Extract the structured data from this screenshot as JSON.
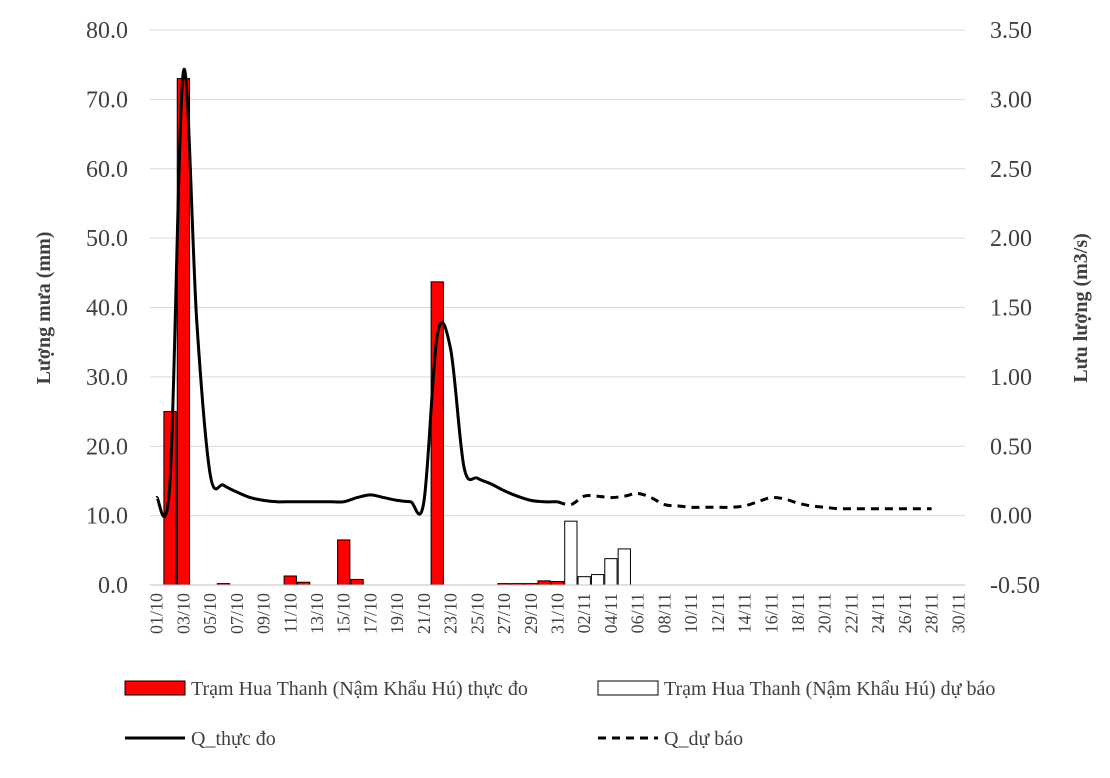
{
  "chart_data": {
    "type": "bar",
    "y_left": {
      "label": "Lượng mưa (mm)",
      "range": [
        0,
        80
      ],
      "ticks": [
        "0.0",
        "10.0",
        "20.0",
        "30.0",
        "40.0",
        "50.0",
        "60.0",
        "70.0",
        "80.0"
      ]
    },
    "y_right": {
      "label": "Lưu lượng (m3/s)",
      "range": [
        -0.5,
        3.5
      ],
      "ticks": [
        "-0.50",
        "0.00",
        "0.50",
        "1.00",
        "1.50",
        "2.00",
        "2.50",
        "3.00",
        "3.50"
      ]
    },
    "x_range": [
      "01/10",
      "30/11"
    ],
    "x_tick_labels": [
      "01/10",
      "03/10",
      "05/10",
      "07/10",
      "09/10",
      "11/10",
      "13/10",
      "15/10",
      "17/10",
      "19/10",
      "21/10",
      "23/10",
      "25/10",
      "27/10",
      "29/10",
      "31/10",
      "02/11",
      "04/11",
      "06/11",
      "08/11",
      "10/11",
      "12/11",
      "14/11",
      "16/11",
      "18/11",
      "20/11",
      "22/11",
      "24/11",
      "26/11",
      "28/11",
      "30/11"
    ],
    "grid": "horizontal",
    "legend_position": "bottom",
    "series": [
      {
        "name": "Trạm Hua Thanh (Nậm Khẩu Hú) thực đo",
        "kind": "bar",
        "axis": "left",
        "color": "#ff0000",
        "points": [
          [
            "02/10",
            25.0
          ],
          [
            "03/10",
            73.0
          ],
          [
            "06/10",
            0.2
          ],
          [
            "11/10",
            1.3
          ],
          [
            "12/10",
            0.4
          ],
          [
            "15/10",
            6.5
          ],
          [
            "16/10",
            0.8
          ],
          [
            "22/10",
            43.7
          ],
          [
            "27/10",
            0.2
          ],
          [
            "28/10",
            0.2
          ],
          [
            "29/10",
            0.2
          ],
          [
            "30/10",
            0.6
          ],
          [
            "31/10",
            0.5
          ]
        ]
      },
      {
        "name": "Trạm Hua Thanh (Nậm Khẩu Hú) dự báo",
        "kind": "bar",
        "axis": "left",
        "color": "#ffffff",
        "points": [
          [
            "01/11",
            9.2
          ],
          [
            "02/11",
            1.2
          ],
          [
            "03/11",
            1.5
          ],
          [
            "04/11",
            3.8
          ],
          [
            "05/11",
            5.2
          ]
        ]
      },
      {
        "name": "Q_thực đo",
        "kind": "line",
        "axis": "right",
        "color": "#000000",
        "dash": "solid",
        "points": [
          [
            "01/10",
            0.13
          ],
          [
            "02/10",
            0.25
          ],
          [
            "03/10",
            3.2
          ],
          [
            "04/10",
            1.4
          ],
          [
            "05/10",
            0.3
          ],
          [
            "06/10",
            0.22
          ],
          [
            "07/10",
            0.17
          ],
          [
            "08/10",
            0.13
          ],
          [
            "09/10",
            0.11
          ],
          [
            "10/10",
            0.1
          ],
          [
            "11/10",
            0.1
          ],
          [
            "12/10",
            0.1
          ],
          [
            "13/10",
            0.1
          ],
          [
            "14/10",
            0.1
          ],
          [
            "15/10",
            0.1
          ],
          [
            "16/10",
            0.13
          ],
          [
            "17/10",
            0.15
          ],
          [
            "18/10",
            0.13
          ],
          [
            "19/10",
            0.11
          ],
          [
            "20/10",
            0.1
          ],
          [
            "21/10",
            0.1
          ],
          [
            "22/10",
            1.3
          ],
          [
            "23/10",
            1.2
          ],
          [
            "24/10",
            0.35
          ],
          [
            "25/10",
            0.27
          ],
          [
            "26/10",
            0.23
          ],
          [
            "27/10",
            0.18
          ],
          [
            "28/10",
            0.14
          ],
          [
            "29/10",
            0.11
          ],
          [
            "30/10",
            0.1
          ],
          [
            "31/10",
            0.1
          ]
        ]
      },
      {
        "name": "Q_dự báo",
        "kind": "line",
        "axis": "right",
        "color": "#000000",
        "dash": "dashed",
        "points": [
          [
            "31/10",
            0.1
          ],
          [
            "01/11",
            0.08
          ],
          [
            "02/11",
            0.14
          ],
          [
            "03/11",
            0.14
          ],
          [
            "04/11",
            0.13
          ],
          [
            "05/11",
            0.14
          ],
          [
            "06/11",
            0.16
          ],
          [
            "07/11",
            0.13
          ],
          [
            "08/11",
            0.08
          ],
          [
            "09/11",
            0.07
          ],
          [
            "10/11",
            0.06
          ],
          [
            "11/11",
            0.06
          ],
          [
            "12/11",
            0.06
          ],
          [
            "13/11",
            0.06
          ],
          [
            "14/11",
            0.07
          ],
          [
            "15/11",
            0.1
          ],
          [
            "16/11",
            0.13
          ],
          [
            "17/11",
            0.12
          ],
          [
            "18/11",
            0.09
          ],
          [
            "19/11",
            0.07
          ],
          [
            "20/11",
            0.06
          ],
          [
            "21/11",
            0.05
          ],
          [
            "22/11",
            0.05
          ],
          [
            "23/11",
            0.05
          ],
          [
            "24/11",
            0.05
          ],
          [
            "25/11",
            0.05
          ],
          [
            "26/11",
            0.05
          ],
          [
            "27/11",
            0.05
          ],
          [
            "28/11",
            0.05
          ]
        ]
      }
    ]
  }
}
